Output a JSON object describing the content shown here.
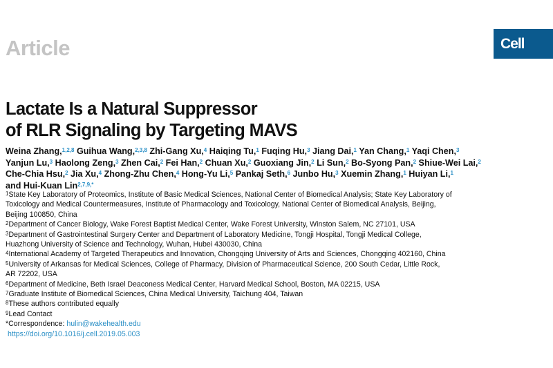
{
  "header": {
    "article_type": "Article",
    "journal_logo": "Cell",
    "logo_color": "#0b5a8e"
  },
  "title_lines": [
    "Lactate Is a Natural Suppressor",
    "of RLR Signaling by Targeting MAVS"
  ],
  "author_lines": [
    [
      {
        "name": "Weina Zhang,",
        "sup": "1,2,8"
      },
      {
        "name": "Guihua Wang,",
        "sup": "2,3,8"
      },
      {
        "name": "Zhi-Gang Xu,",
        "sup": "4"
      },
      {
        "name": "Haiqing Tu,",
        "sup": "1"
      },
      {
        "name": "Fuqing Hu,",
        "sup": "3"
      },
      {
        "name": "Jiang Dai,",
        "sup": "1"
      },
      {
        "name": "Yan Chang,",
        "sup": "1"
      },
      {
        "name": "Yaqi Chen,",
        "sup": "3"
      }
    ],
    [
      {
        "name": "Yanjun Lu,",
        "sup": "3"
      },
      {
        "name": "Haolong Zeng,",
        "sup": "3"
      },
      {
        "name": "Zhen Cai,",
        "sup": "2"
      },
      {
        "name": "Fei Han,",
        "sup": "2"
      },
      {
        "name": "Chuan Xu,",
        "sup": "2"
      },
      {
        "name": "Guoxiang Jin,",
        "sup": "2"
      },
      {
        "name": "Li Sun,",
        "sup": "2"
      },
      {
        "name": "Bo-Syong Pan,",
        "sup": "2"
      },
      {
        "name": "Shiue-Wei Lai,",
        "sup": "2"
      }
    ],
    [
      {
        "name": "Che-Chia Hsu,",
        "sup": "2"
      },
      {
        "name": "Jia Xu,",
        "sup": "4"
      },
      {
        "name": "Zhong-Zhu Chen,",
        "sup": "4"
      },
      {
        "name": "Hong-Yu Li,",
        "sup": "5"
      },
      {
        "name": "Pankaj Seth,",
        "sup": "6"
      },
      {
        "name": "Junbo Hu,",
        "sup": "3"
      },
      {
        "name": "Xuemin Zhang,",
        "sup": "1"
      },
      {
        "name": "Huiyan Li,",
        "sup": "1"
      }
    ],
    [
      {
        "name": "and Hui-Kuan Lin",
        "sup": "2,7,9,*"
      }
    ]
  ],
  "affiliations": [
    {
      "num": "1",
      "lines": [
        "State Key Laboratory of Proteomics, Institute of Basic Medical Sciences, National Center of Biomedical Analysis; State Key Laboratory of",
        "Toxicology and Medical Countermeasures, Institute of Pharmacology and Toxicology, National Center of Biomedical Analysis, Beijing,",
        "Beijing 100850, China"
      ]
    },
    {
      "num": "2",
      "lines": [
        "Department of Cancer Biology, Wake Forest Baptist Medical Center, Wake Forest University, Winston Salem, NC 27101, USA"
      ]
    },
    {
      "num": "3",
      "lines": [
        "Department of Gastrointestinal Surgery Center and Department of Laboratory Medicine, Tongji Hospital, Tongji Medical College,",
        "Huazhong University of Science and Technology, Wuhan, Hubei 430030, China"
      ]
    },
    {
      "num": "4",
      "lines": [
        "International Academy of Targeted Therapeutics and Innovation, Chongqing University of Arts and Sciences, Chongqing 402160, China"
      ]
    },
    {
      "num": "5",
      "lines": [
        "University of Arkansas for Medical Sciences, College of Pharmacy, Division of Pharmaceutical Science, 200 South Cedar, Little Rock,",
        "AR 72202, USA"
      ]
    },
    {
      "num": "6",
      "lines": [
        "Department of Medicine, Beth Israel Deaconess Medical Center, Harvard Medical School, Boston, MA 02215, USA"
      ]
    },
    {
      "num": "7",
      "lines": [
        "Graduate Institute of Biomedical Sciences, China Medical University, Taichung 404, Taiwan"
      ]
    },
    {
      "num": "8",
      "lines": [
        "These authors contributed equally"
      ]
    },
    {
      "num": "9",
      "lines": [
        "Lead Contact"
      ]
    }
  ],
  "correspondence": {
    "label": "*Correspondence: ",
    "email": "hulin@wakehealth.edu"
  },
  "doi": "https://doi.org/10.1016/j.cell.2019.05.003",
  "link_color": "#2a8fc6"
}
